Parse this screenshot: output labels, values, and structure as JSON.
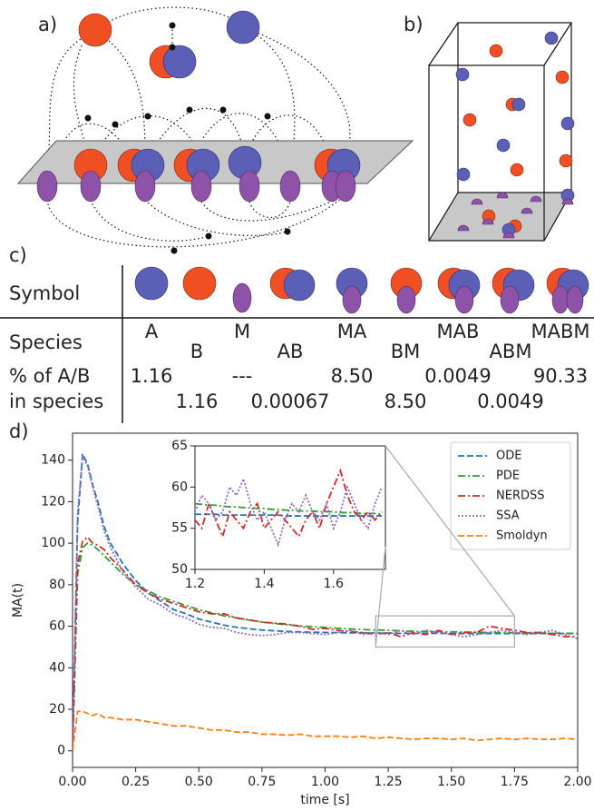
{
  "panel_labels": [
    "a)",
    "b)",
    "c)",
    "d)"
  ],
  "table": {
    "row_headers": [
      "Symbol",
      "Species",
      "% of A/B",
      "in species"
    ],
    "species": [
      "A",
      "B",
      "M",
      "AB",
      "MA",
      "BM",
      "MAB",
      "ABM",
      "MABM"
    ],
    "percent": [
      "1.16",
      "1.16",
      "---",
      "0.00067",
      "8.50",
      "8.50",
      "0.0049",
      "0.0049",
      "90.33"
    ]
  },
  "chart_data": [
    {
      "type": "line",
      "x_label": "time [s]",
      "y_label": "MA(t)",
      "xlim": [
        0,
        2
      ],
      "ylim": [
        -8,
        153
      ],
      "xticks": [
        {
          "value": 0,
          "label": "0.00"
        },
        {
          "value": 0.25,
          "label": "0.25"
        },
        {
          "value": 0.5,
          "label": "0.50"
        },
        {
          "value": 0.75,
          "label": "0.75"
        },
        {
          "value": 1,
          "label": "1.00"
        },
        {
          "value": 1.25,
          "label": "1.25"
        },
        {
          "value": 1.5,
          "label": "1.50"
        },
        {
          "value": 1.75,
          "label": "1.75"
        },
        {
          "value": 2,
          "label": "2.00"
        }
      ],
      "yticks": [
        0,
        20,
        40,
        60,
        80,
        100,
        120,
        140
      ],
      "legend": "upper right",
      "x": [
        0,
        0.02,
        0.04,
        0.06,
        0.08,
        0.1,
        0.125,
        0.15,
        0.2,
        0.25,
        0.3,
        0.35,
        0.4,
        0.45,
        0.5,
        0.55,
        0.6,
        0.65,
        0.7,
        0.75,
        0.8,
        0.85,
        0.9,
        0.95,
        1.0,
        1.05,
        1.1,
        1.15,
        1.2,
        1.25,
        1.3,
        1.35,
        1.4,
        1.45,
        1.5,
        1.55,
        1.6,
        1.65,
        1.7,
        1.75,
        1.8,
        1.85,
        1.9,
        1.95,
        2.0
      ],
      "series": [
        {
          "name": "ODE",
          "color": "#1f77b4",
          "dash": "dashed",
          "values": [
            0,
            110,
            143,
            138,
            128,
            120,
            108,
            100,
            90,
            82,
            76,
            72,
            68,
            66,
            63.5,
            62,
            60.5,
            59.5,
            58.8,
            58.2,
            57.8,
            57.5,
            57.3,
            57.1,
            57,
            56.9,
            56.8,
            56.8,
            56.7,
            56.7,
            56.6,
            56.6,
            56.6,
            56.6,
            56.5,
            56.5,
            56.5,
            56.5,
            56.5,
            56.5,
            56.5,
            56.5,
            56.5,
            56.5,
            56.5
          ]
        },
        {
          "name": "PDE",
          "color": "#2ca02c",
          "dash": "dashdot",
          "values": [
            0,
            85,
            98,
            100,
            99,
            97,
            94,
            91,
            85,
            80,
            77,
            74,
            72,
            70,
            68,
            66.5,
            65,
            64,
            63,
            62,
            61.3,
            60.7,
            60.2,
            59.8,
            59.4,
            59,
            58.7,
            58.4,
            58.2,
            58,
            57.8,
            57.6,
            57.5,
            57.4,
            57.3,
            57.2,
            57.1,
            57,
            56.9,
            56.8,
            56.8,
            56.7,
            56.6,
            56.6,
            56.5
          ]
        },
        {
          "name": "NERDSS",
          "color": "#d62728",
          "dash": "dashdot",
          "values": [
            0,
            90,
            101,
            103,
            100,
            99,
            97,
            93,
            87,
            80,
            76,
            73,
            71,
            69,
            67,
            66,
            66,
            64,
            63,
            62,
            61.5,
            61,
            60,
            58.5,
            59,
            58,
            57.5,
            57,
            56,
            57,
            55,
            57,
            56,
            58,
            56,
            57,
            57,
            60,
            59,
            58,
            57,
            57,
            56,
            55,
            55
          ]
        },
        {
          "name": "SSA",
          "color": "#9467bd",
          "dash": "dotted",
          "values": [
            0,
            115,
            142,
            137,
            127,
            118,
            106,
            98,
            86,
            79,
            73,
            70,
            66,
            64,
            61,
            59.5,
            59,
            57,
            56,
            55.5,
            56,
            57,
            57,
            56.5,
            56,
            57,
            58,
            56,
            57,
            56,
            58,
            56,
            58,
            57,
            56,
            55,
            56,
            57,
            58,
            57,
            56,
            57,
            58,
            56,
            54
          ]
        },
        {
          "name": "Smoldyn",
          "color": "#ff7f0e",
          "dash": "dashed",
          "values": [
            0,
            19,
            19,
            18,
            17,
            18,
            16,
            16,
            15,
            15,
            14,
            13,
            12,
            12,
            11,
            10,
            10,
            9,
            9,
            8,
            8,
            7.5,
            8,
            7,
            7,
            7,
            6.5,
            7,
            6,
            6.5,
            6,
            5.5,
            6,
            6,
            5.5,
            6,
            5,
            5.5,
            6,
            5.5,
            6,
            5.5,
            5.5,
            6,
            5.5
          ]
        }
      ]
    },
    {
      "type": "line",
      "xlim": [
        1.2,
        1.75
      ],
      "ylim": [
        50,
        65
      ],
      "xticks": [
        1.2,
        1.4,
        1.6
      ],
      "yticks": [
        50,
        55,
        60,
        65
      ],
      "x": [
        1.2,
        1.22,
        1.24,
        1.26,
        1.28,
        1.3,
        1.32,
        1.34,
        1.36,
        1.38,
        1.4,
        1.42,
        1.44,
        1.46,
        1.48,
        1.5,
        1.52,
        1.54,
        1.56,
        1.58,
        1.6,
        1.62,
        1.64,
        1.66,
        1.68,
        1.7,
        1.72,
        1.74
      ],
      "series": [
        {
          "color": "#1f77b4",
          "dash": "dashed",
          "values": [
            56.7,
            56.7,
            56.7,
            56.7,
            56.6,
            56.6,
            56.6,
            56.6,
            56.6,
            56.6,
            56.6,
            56.6,
            56.6,
            56.5,
            56.5,
            56.5,
            56.5,
            56.5,
            56.5,
            56.5,
            56.5,
            56.5,
            56.5,
            56.5,
            56.5,
            56.5,
            56.5,
            56.5
          ]
        },
        {
          "color": "#2ca02c",
          "dash": "dashdot",
          "values": [
            58,
            57.9,
            57.8,
            57.8,
            57.7,
            57.6,
            57.6,
            57.5,
            57.5,
            57.4,
            57.4,
            57.3,
            57.3,
            57.2,
            57.2,
            57.1,
            57.1,
            57.1,
            57,
            57,
            57,
            56.9,
            56.9,
            56.9,
            56.8,
            56.8,
            56.8,
            56.7
          ]
        },
        {
          "color": "#d62728",
          "dash": "dashdot",
          "values": [
            56,
            55,
            58,
            56,
            54,
            57,
            56,
            55,
            57,
            58,
            55,
            56,
            57,
            56,
            55,
            54,
            56,
            57,
            55,
            58,
            60,
            62,
            59,
            57,
            56,
            57,
            56,
            57
          ]
        },
        {
          "color": "#9467bd",
          "dash": "dotted",
          "values": [
            57,
            59,
            58,
            56,
            57,
            60,
            59,
            61,
            58,
            56,
            57,
            55,
            53,
            56,
            58,
            57,
            59,
            57,
            56,
            58,
            55,
            57,
            60,
            58,
            56,
            55,
            58,
            60
          ]
        }
      ]
    }
  ]
}
